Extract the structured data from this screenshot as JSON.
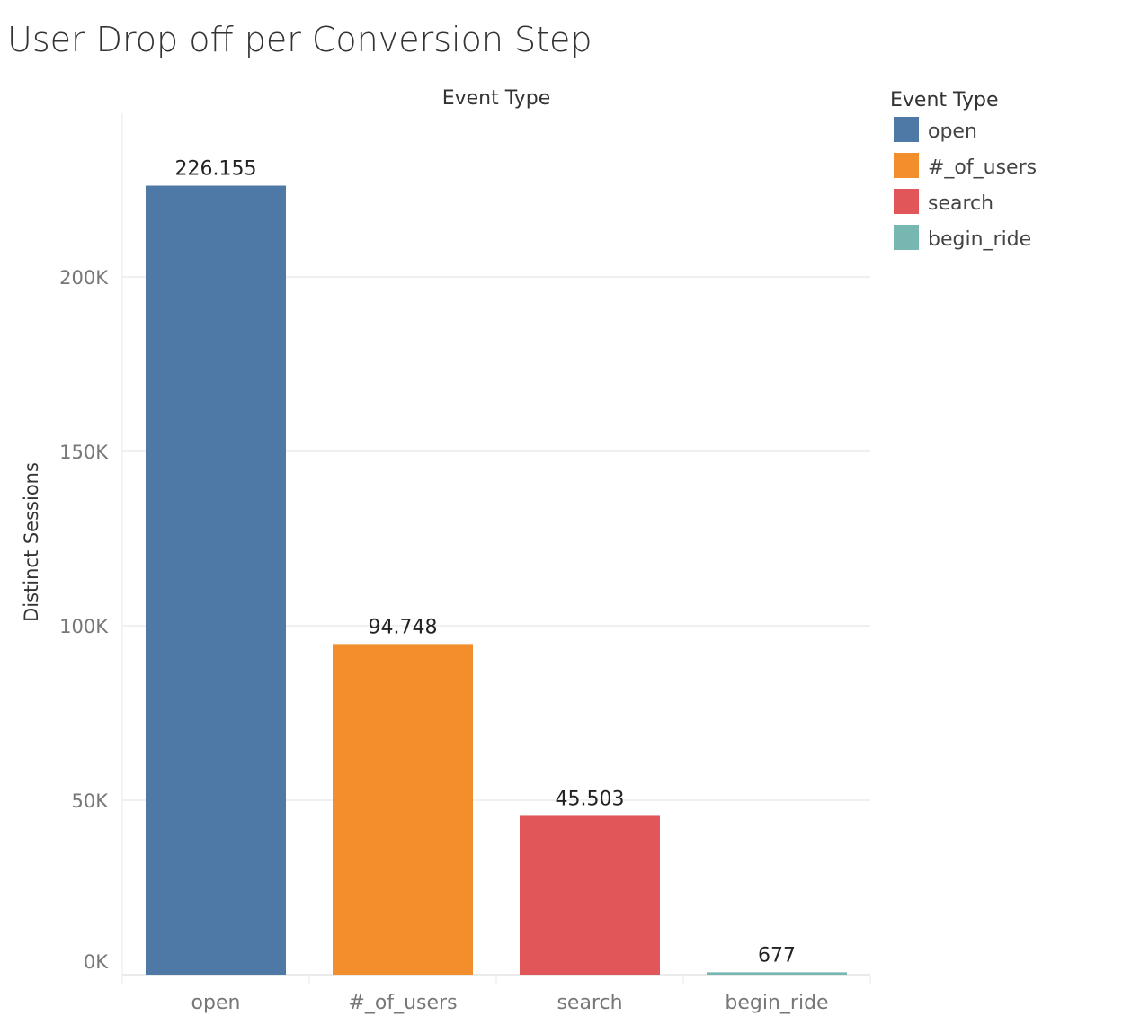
{
  "chart_data": {
    "type": "bar",
    "title": "User Drop off per Conversion Step",
    "column_header": "Event Type",
    "ylabel": "Distinct Sessions",
    "xlabel": "",
    "categories": [
      "open",
      "#_of_users",
      "search",
      "begin_ride"
    ],
    "values": [
      226155,
      94748,
      45503,
      677
    ],
    "data_labels": [
      "226.155",
      "94.748",
      "45.503",
      "677"
    ],
    "colors": [
      "#4e79a7",
      "#f28e2b",
      "#e15759",
      "#76b7b2"
    ],
    "ylim": [
      0,
      245000
    ],
    "yticks": [
      0,
      50000,
      100000,
      150000,
      200000
    ],
    "ytick_labels": [
      "0K",
      "50K",
      "100K",
      "150K",
      "200K"
    ],
    "grid": true,
    "legend": {
      "title": "Event Type",
      "position": "right",
      "entries": [
        "open",
        "#_of_users",
        "search",
        "begin_ride"
      ]
    }
  }
}
